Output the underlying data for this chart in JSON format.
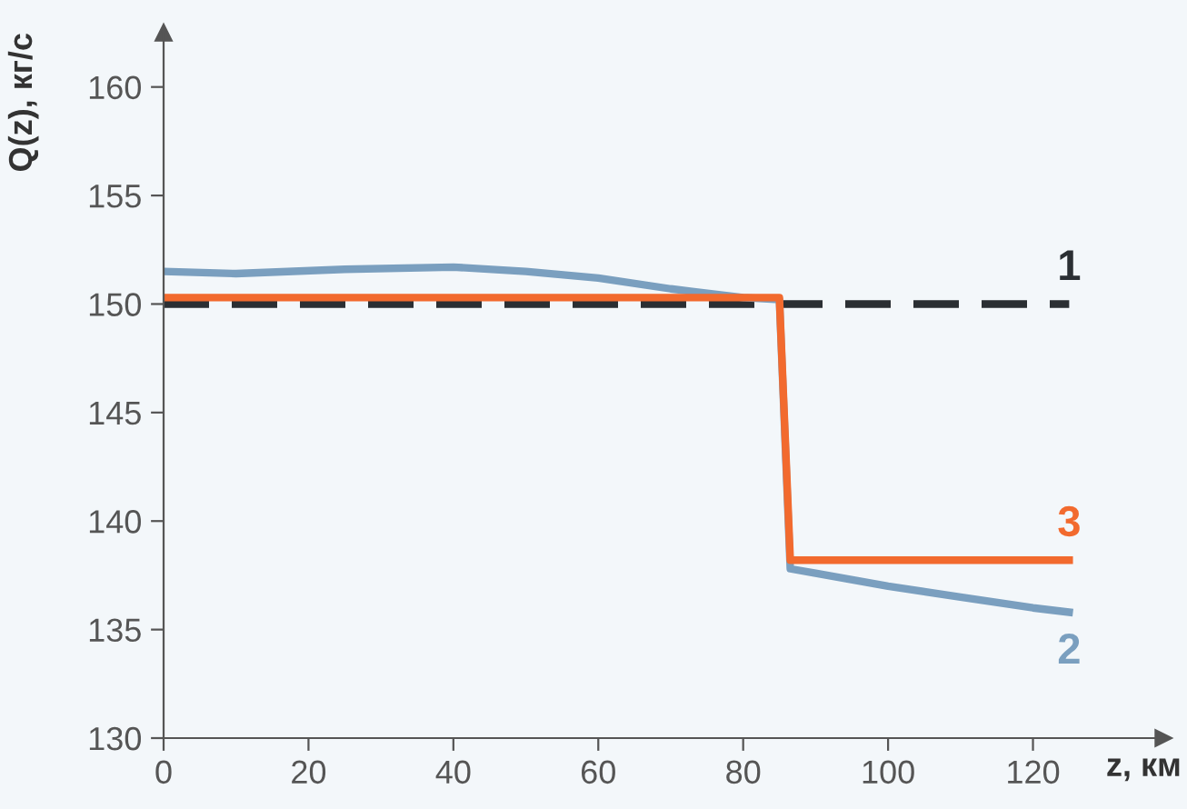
{
  "chart_data": {
    "type": "line",
    "xlabel": "z, км",
    "ylabel": "Q(z), кг/с",
    "xlim": [
      0,
      138
    ],
    "ylim": [
      130,
      162.5
    ],
    "xticks": [
      0,
      20,
      40,
      60,
      80,
      100,
      120
    ],
    "yticks": [
      130,
      135,
      140,
      145,
      150,
      155,
      160
    ],
    "grid": false,
    "legend": false,
    "marker": "none",
    "series": [
      {
        "name": "1",
        "color": "#2b2f33",
        "line_style": "dashed",
        "x": [
          0,
          125
        ],
        "values": [
          150,
          150
        ]
      },
      {
        "name": "2",
        "color": "#7a9fbf",
        "line_style": "solid",
        "x": [
          0,
          10,
          25,
          40,
          50,
          60,
          70,
          80,
          85,
          86.5,
          90,
          100,
          110,
          120,
          125
        ],
        "values": [
          151.5,
          151.4,
          151.6,
          151.7,
          151.5,
          151.2,
          150.7,
          150.3,
          150.2,
          137.8,
          137.6,
          137.0,
          136.5,
          136.0,
          135.8
        ]
      },
      {
        "name": "3",
        "color": "#f26a2e",
        "line_style": "solid",
        "x": [
          0,
          85,
          86.5,
          125
        ],
        "values": [
          150.3,
          150.3,
          138.2,
          138.2
        ]
      }
    ]
  }
}
